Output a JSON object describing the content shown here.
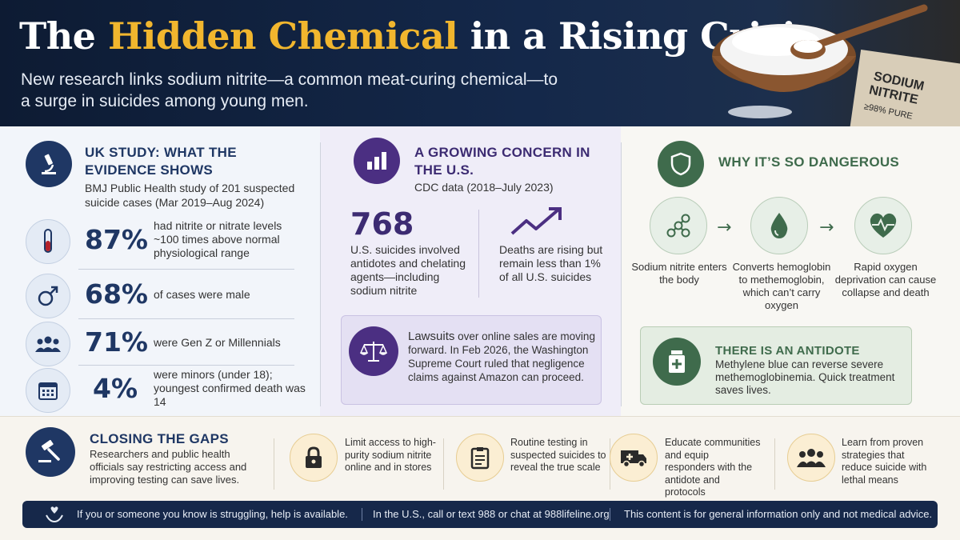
{
  "header": {
    "title_part1": "The",
    "title_highlight": "Hidden Chemical",
    "title_part2": "in a Rising Crisis",
    "subtitle": "New research links sodium nitrite—a common meat-curing chemical—to a surge in suicides among young men.",
    "package_label_line1": "SODIUM",
    "package_label_line2": "NITRITE",
    "package_purity": "≥98% PURE"
  },
  "uk": {
    "title": "UK STUDY: WHAT THE EVIDENCE SHOWS",
    "subtitle": "BMJ Public Health study of 201 suspected suicide cases (Mar 2019–Aug 2024)",
    "stats": [
      {
        "value": "87%",
        "desc": "had nitrite or nitrate levels ~100 times above normal physiological range",
        "icon": "test-tube-icon"
      },
      {
        "value": "68%",
        "desc": "of cases were male",
        "icon": "male-symbol-icon"
      },
      {
        "value": "71%",
        "desc": "were Gen Z or Millennials",
        "icon": "people-icon"
      },
      {
        "value": "4%",
        "desc": "were minors (under 18); youngest confirmed death was 14",
        "icon": "calendar-icon"
      }
    ]
  },
  "us": {
    "title": "A GROWING CONCERN IN THE U.S.",
    "subtitle": "CDC data (2018–July 2023)",
    "big_number": "768",
    "big_desc": "U.S. suicides involved antidotes and chelating agents—including sodium nitrite",
    "trend_desc": "Deaths are rising but remain less than 1% of all U.S. suicides",
    "lawsuit_lead": "Lawsuits",
    "lawsuit_text": " over online sales are moving forward. In Feb 2026, the Washington Supreme Court ruled that negligence claims against Amazon can proceed."
  },
  "danger": {
    "title": "WHY IT’S SO DANGEROUS",
    "steps": [
      "Sodium nitrite enters the body",
      "Converts hemoglobin to methemoglobin, which can’t carry oxygen",
      "Rapid oxygen deprivation can cause collapse and death"
    ],
    "arrow": "→",
    "antidote_title": "THERE IS AN ANTIDOTE",
    "antidote_text": "Methylene blue can reverse severe methemoglobinemia. Quick treatment saves lives."
  },
  "gaps": {
    "title": "CLOSING THE GAPS",
    "text": "Researchers and public health officials say restricting access and improving testing can save lives.",
    "items": [
      {
        "text": "Limit access to high-purity sodium nitrite online and in stores",
        "icon": "lock-icon"
      },
      {
        "text": "Routine testing in suspected suicides to reveal the true scale",
        "icon": "clipboard-icon"
      },
      {
        "text": "Educate communities and equip responders with the antidote and protocols",
        "icon": "ambulance-icon"
      },
      {
        "text": "Learn from proven strategies that reduce suicide with lethal means",
        "icon": "group-icon"
      }
    ]
  },
  "footer": {
    "help": "If you or someone you know is struggling, help is available.",
    "call": "In the U.S., call or text 988 or chat at 988lifeline.org",
    "disclaimer": "This content is for general information only and not medical advice."
  },
  "colors": {
    "navy": "#1f3764",
    "purple": "#4b2f82",
    "green": "#3f6b4c",
    "gold": "#f1b62e"
  }
}
